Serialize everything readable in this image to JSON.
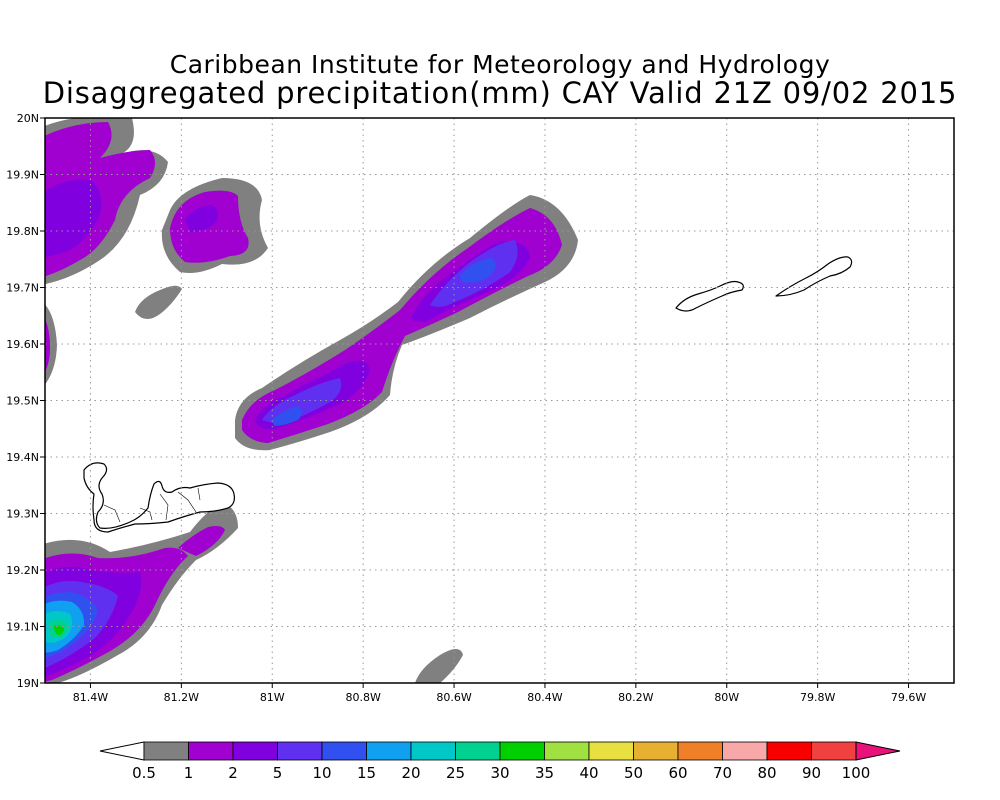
{
  "title": {
    "line1": "Caribbean Institute for Meteorology and Hydrology",
    "line2": "Disaggregated precipitation(mm) CAY Valid 21Z 09/02 2015"
  },
  "map": {
    "lon_range": [
      -81.5,
      -79.5
    ],
    "lat_range": [
      19.0,
      20.0
    ],
    "grid": true,
    "x_ticks": [
      {
        "value": -81.4,
        "label": "81.4W"
      },
      {
        "value": -81.2,
        "label": "81.2W"
      },
      {
        "value": -81.0,
        "label": "81W"
      },
      {
        "value": -80.8,
        "label": "80.8W"
      },
      {
        "value": -80.6,
        "label": "80.6W"
      },
      {
        "value": -80.4,
        "label": "80.4W"
      },
      {
        "value": -80.2,
        "label": "80.2W"
      },
      {
        "value": -80.0,
        "label": "80W"
      },
      {
        "value": -79.8,
        "label": "79.8W"
      },
      {
        "value": -79.6,
        "label": "79.6W"
      }
    ],
    "y_ticks": [
      {
        "value": 19.0,
        "label": "19N"
      },
      {
        "value": 19.1,
        "label": "19.1N"
      },
      {
        "value": 19.2,
        "label": "19.2N"
      },
      {
        "value": 19.3,
        "label": "19.3N"
      },
      {
        "value": 19.4,
        "label": "19.4N"
      },
      {
        "value": 19.5,
        "label": "19.5N"
      },
      {
        "value": 19.6,
        "label": "19.6N"
      },
      {
        "value": 19.7,
        "label": "19.7N"
      },
      {
        "value": 19.8,
        "label": "19.8N"
      },
      {
        "value": 19.9,
        "label": "19.9N"
      },
      {
        "value": 20.0,
        "label": "20N"
      }
    ]
  },
  "colorbar": {
    "labels": [
      "0.5",
      "1",
      "2",
      "5",
      "10",
      "15",
      "20",
      "25",
      "30",
      "35",
      "40",
      "50",
      "60",
      "70",
      "80",
      "90",
      "100"
    ],
    "colors": [
      "#808080",
      "#a000d0",
      "#8000e0",
      "#6030f0",
      "#3050f0",
      "#10a0f0",
      "#00c8c8",
      "#00d090",
      "#00d000",
      "#a0e040",
      "#e8e040",
      "#e8b030",
      "#f08028",
      "#f8a8a8",
      "#f80000",
      "#f04040"
    ],
    "under_color": "#ffffff",
    "over_color": "#e8127a"
  }
}
